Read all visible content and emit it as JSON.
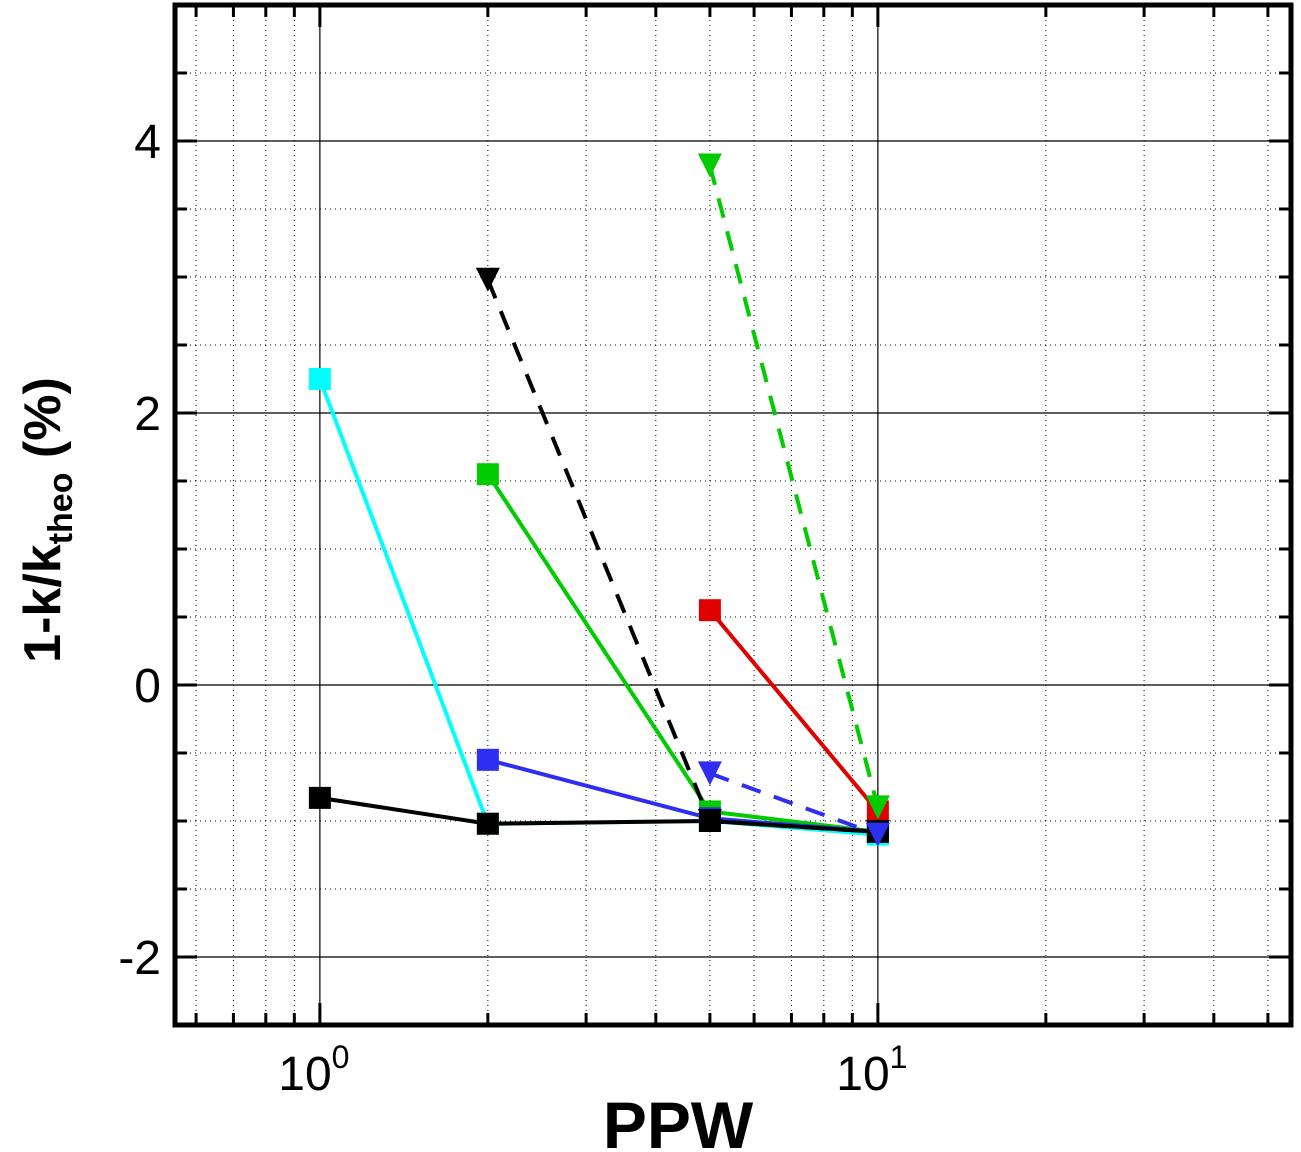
{
  "chart_data": {
    "type": "line",
    "x_scale": "log",
    "xlabel": "PPW",
    "ylabel": {
      "prefix": "1-k/k",
      "subscript": "theo",
      "suffix": " (%)"
    },
    "xlim": [
      0.55,
      55
    ],
    "ylim": [
      -2.5,
      5
    ],
    "x_ticks": [
      {
        "value": 1,
        "base": "10",
        "exp": "0"
      },
      {
        "value": 10,
        "base": "10",
        "exp": "1"
      }
    ],
    "y_ticks": [
      {
        "value": -2,
        "label": "-2"
      },
      {
        "value": 0,
        "label": "0"
      },
      {
        "value": 2,
        "label": "2"
      },
      {
        "value": 4,
        "label": "4"
      }
    ],
    "grid": true,
    "series": [
      {
        "color": "#00ffff",
        "dash": "solid",
        "marker": "square",
        "x": [
          1,
          2,
          5,
          10
        ],
        "y": [
          2.25,
          -1.02,
          -1.0,
          -1.1
        ]
      },
      {
        "color": "#00cc00",
        "dash": "solid",
        "marker": "square",
        "x": [
          2,
          5,
          10
        ],
        "y": [
          1.55,
          -0.93,
          -1.08
        ]
      },
      {
        "color": "#2e2ef0",
        "dash": "solid",
        "marker": "square",
        "x": [
          2,
          5,
          10
        ],
        "y": [
          -0.55,
          -0.98,
          -1.08
        ]
      },
      {
        "color": "#e00000",
        "dash": "solid",
        "marker": "square",
        "x": [
          5,
          10
        ],
        "y": [
          0.55,
          -0.93
        ]
      },
      {
        "color": "#000000",
        "dash": "solid",
        "marker": "square",
        "x": [
          1,
          2,
          5,
          10
        ],
        "y": [
          -0.83,
          -1.02,
          -1.0,
          -1.08
        ]
      },
      {
        "color": "#000000",
        "dash": "dashed",
        "marker": "triangle-down",
        "x": [
          2,
          5,
          10
        ],
        "y": [
          2.98,
          -1.0,
          -1.08
        ]
      },
      {
        "color": "#00cc00",
        "dash": "dashed",
        "marker": "triangle-down",
        "x": [
          5,
          10
        ],
        "y": [
          3.82,
          -0.9
        ]
      },
      {
        "color": "#2e2ef0",
        "dash": "dashed",
        "marker": "triangle-down",
        "x": [
          5,
          10
        ],
        "y": [
          -0.65,
          -1.1
        ]
      }
    ]
  }
}
